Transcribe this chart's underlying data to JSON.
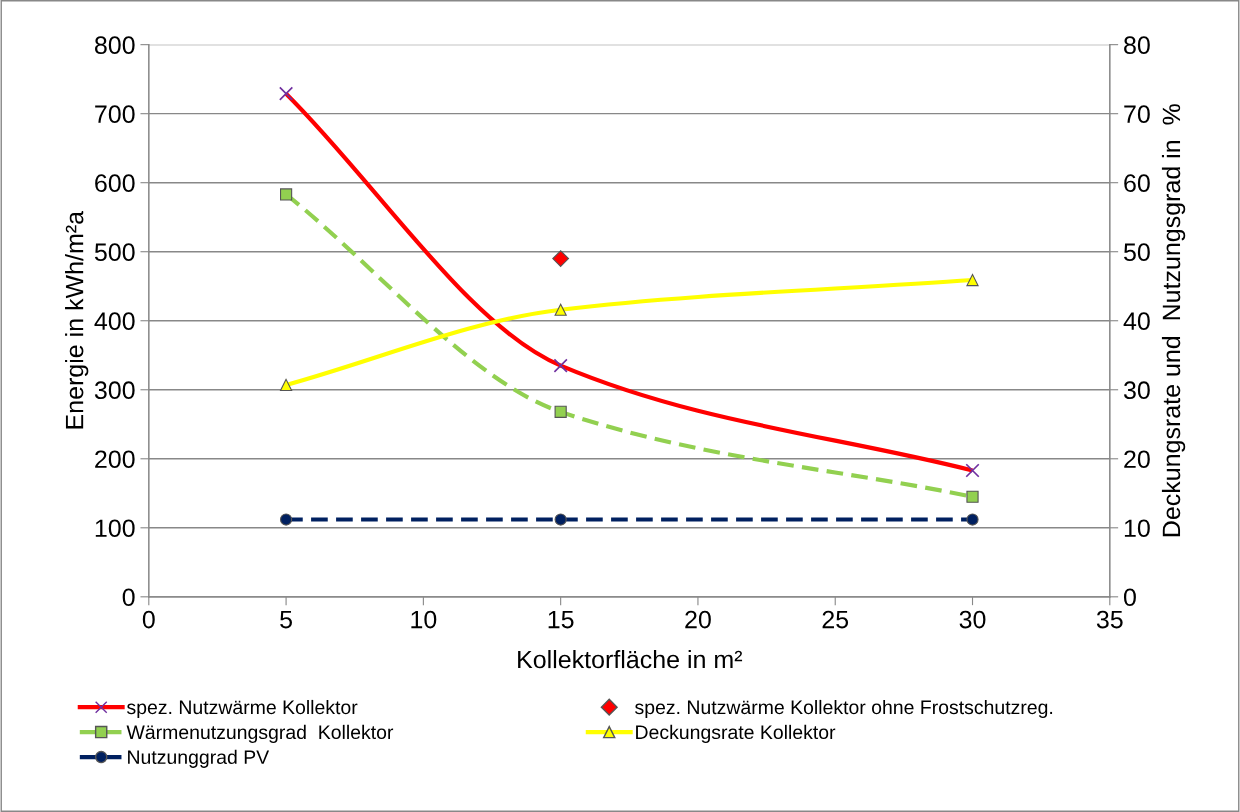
{
  "chart_data": {
    "type": "line",
    "xlabel": "Kollektorfläche in m²",
    "ylabel": "Energie in kWh/m²a",
    "y2label": "Deckungsrate und  Nutzungsgrad in  %",
    "xlim": [
      0,
      35
    ],
    "xticks": [
      0,
      5,
      10,
      15,
      20,
      25,
      30,
      35
    ],
    "ylim": [
      0,
      800
    ],
    "yticks": [
      0,
      100,
      200,
      300,
      400,
      500,
      600,
      700,
      800
    ],
    "y2lim": [
      0,
      80
    ],
    "y2ticks": [
      0,
      10,
      20,
      30,
      40,
      50,
      60,
      70,
      80
    ],
    "grid": "y",
    "legend": "bottom",
    "series": [
      {
        "name": "spez. Nutzwärme Kollektor",
        "color": "#ff0000",
        "marker": "cross",
        "line_style": "solid",
        "x": [
          5,
          15,
          30
        ],
        "values": [
          729,
          335,
          183
        ]
      },
      {
        "name": "spez. Nutzwärme Kollektor ohne Frostschutzreg.",
        "type": "scatter",
        "color": "#ff0000",
        "marker": "diamond",
        "x": [
          15
        ],
        "values": [
          490
        ]
      },
      {
        "name": "Wärmenutzungsgrad  Kollektor",
        "axis": "y2",
        "color": "#92d050",
        "marker": "square",
        "line_style": "dashed",
        "x": [
          5,
          15,
          30
        ],
        "values": [
          58.3,
          26.8,
          14.5
        ]
      },
      {
        "name": "Deckungsrate Kollektor",
        "axis": "y2",
        "color": "#ffff00",
        "marker": "triangle",
        "line_style": "solid",
        "x": [
          5,
          15,
          30
        ],
        "values": [
          30.7,
          41.6,
          45.9
        ]
      },
      {
        "name": "Nutzunggrad PV",
        "axis": "y2",
        "color": "#002060",
        "marker": "circle",
        "line_style": "dashed",
        "x": [
          5,
          15,
          30
        ],
        "values": [
          11.2,
          11.2,
          11.2
        ]
      }
    ]
  }
}
